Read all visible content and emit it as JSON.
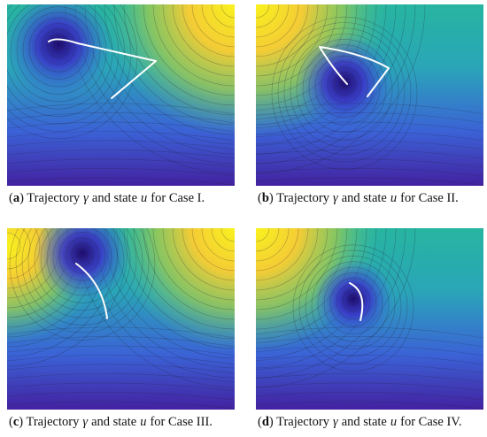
{
  "panels": [
    {
      "label": "a",
      "before": "Trajectory",
      "gamma": "γ",
      "middle": "and state",
      "u": "u",
      "after": "for Case I."
    },
    {
      "label": "b",
      "before": "Trajectory",
      "gamma": "γ",
      "middle": "and state",
      "u": "u",
      "after": "for Case II."
    },
    {
      "label": "c",
      "before": "Trajectory",
      "gamma": "γ",
      "middle": "and state",
      "u": "u",
      "after": "for Case III."
    },
    {
      "label": "d",
      "before": "Trajectory",
      "gamma": "γ",
      "middle": "and state",
      "u": "u",
      "after": "for Case IV."
    }
  ]
}
